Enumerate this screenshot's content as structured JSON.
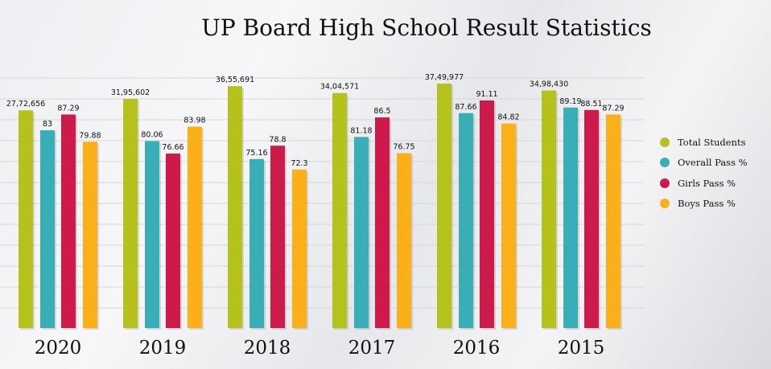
{
  "chart_data": {
    "type": "bar",
    "title": "UP Board High School Result Statistics",
    "categories": [
      "2020",
      "2019",
      "2018",
      "2017",
      "2016",
      "2015"
    ],
    "series": [
      {
        "name": "Total Students",
        "color": "#b5c21c",
        "values": [
          2772656,
          3195602,
          3655691,
          3404571,
          3749977,
          3498430
        ],
        "labels": [
          "27,72,656",
          "31,95,602",
          "36,55,691",
          "34,04,571",
          "37,49,977",
          "34,98,430"
        ]
      },
      {
        "name": "Overall Pass %",
        "color": "#3aaeb6",
        "values": [
          83,
          80.06,
          75.16,
          81.18,
          87.66,
          89.19
        ],
        "labels": [
          "83",
          "80.06",
          "75.16",
          "81.18",
          "87.66",
          "89.19"
        ]
      },
      {
        "name": "Girls Pass %",
        "color": "#cc1a4a",
        "values": [
          87.29,
          76.66,
          78.8,
          86.5,
          91.11,
          88.51
        ],
        "labels": [
          "87.29",
          "76.66",
          "78.8",
          "86.5",
          "91.11",
          "88.51"
        ]
      },
      {
        "name": "Boys Pass %",
        "color": "#fbb01a",
        "values": [
          79.88,
          83.98,
          72.3,
          76.75,
          84.82,
          87.29
        ],
        "labels": [
          "79.88",
          "83.98",
          "72.3",
          "76.75",
          "84.82",
          "87.29"
        ]
      }
    ],
    "legend_position": "right",
    "grid": true
  }
}
